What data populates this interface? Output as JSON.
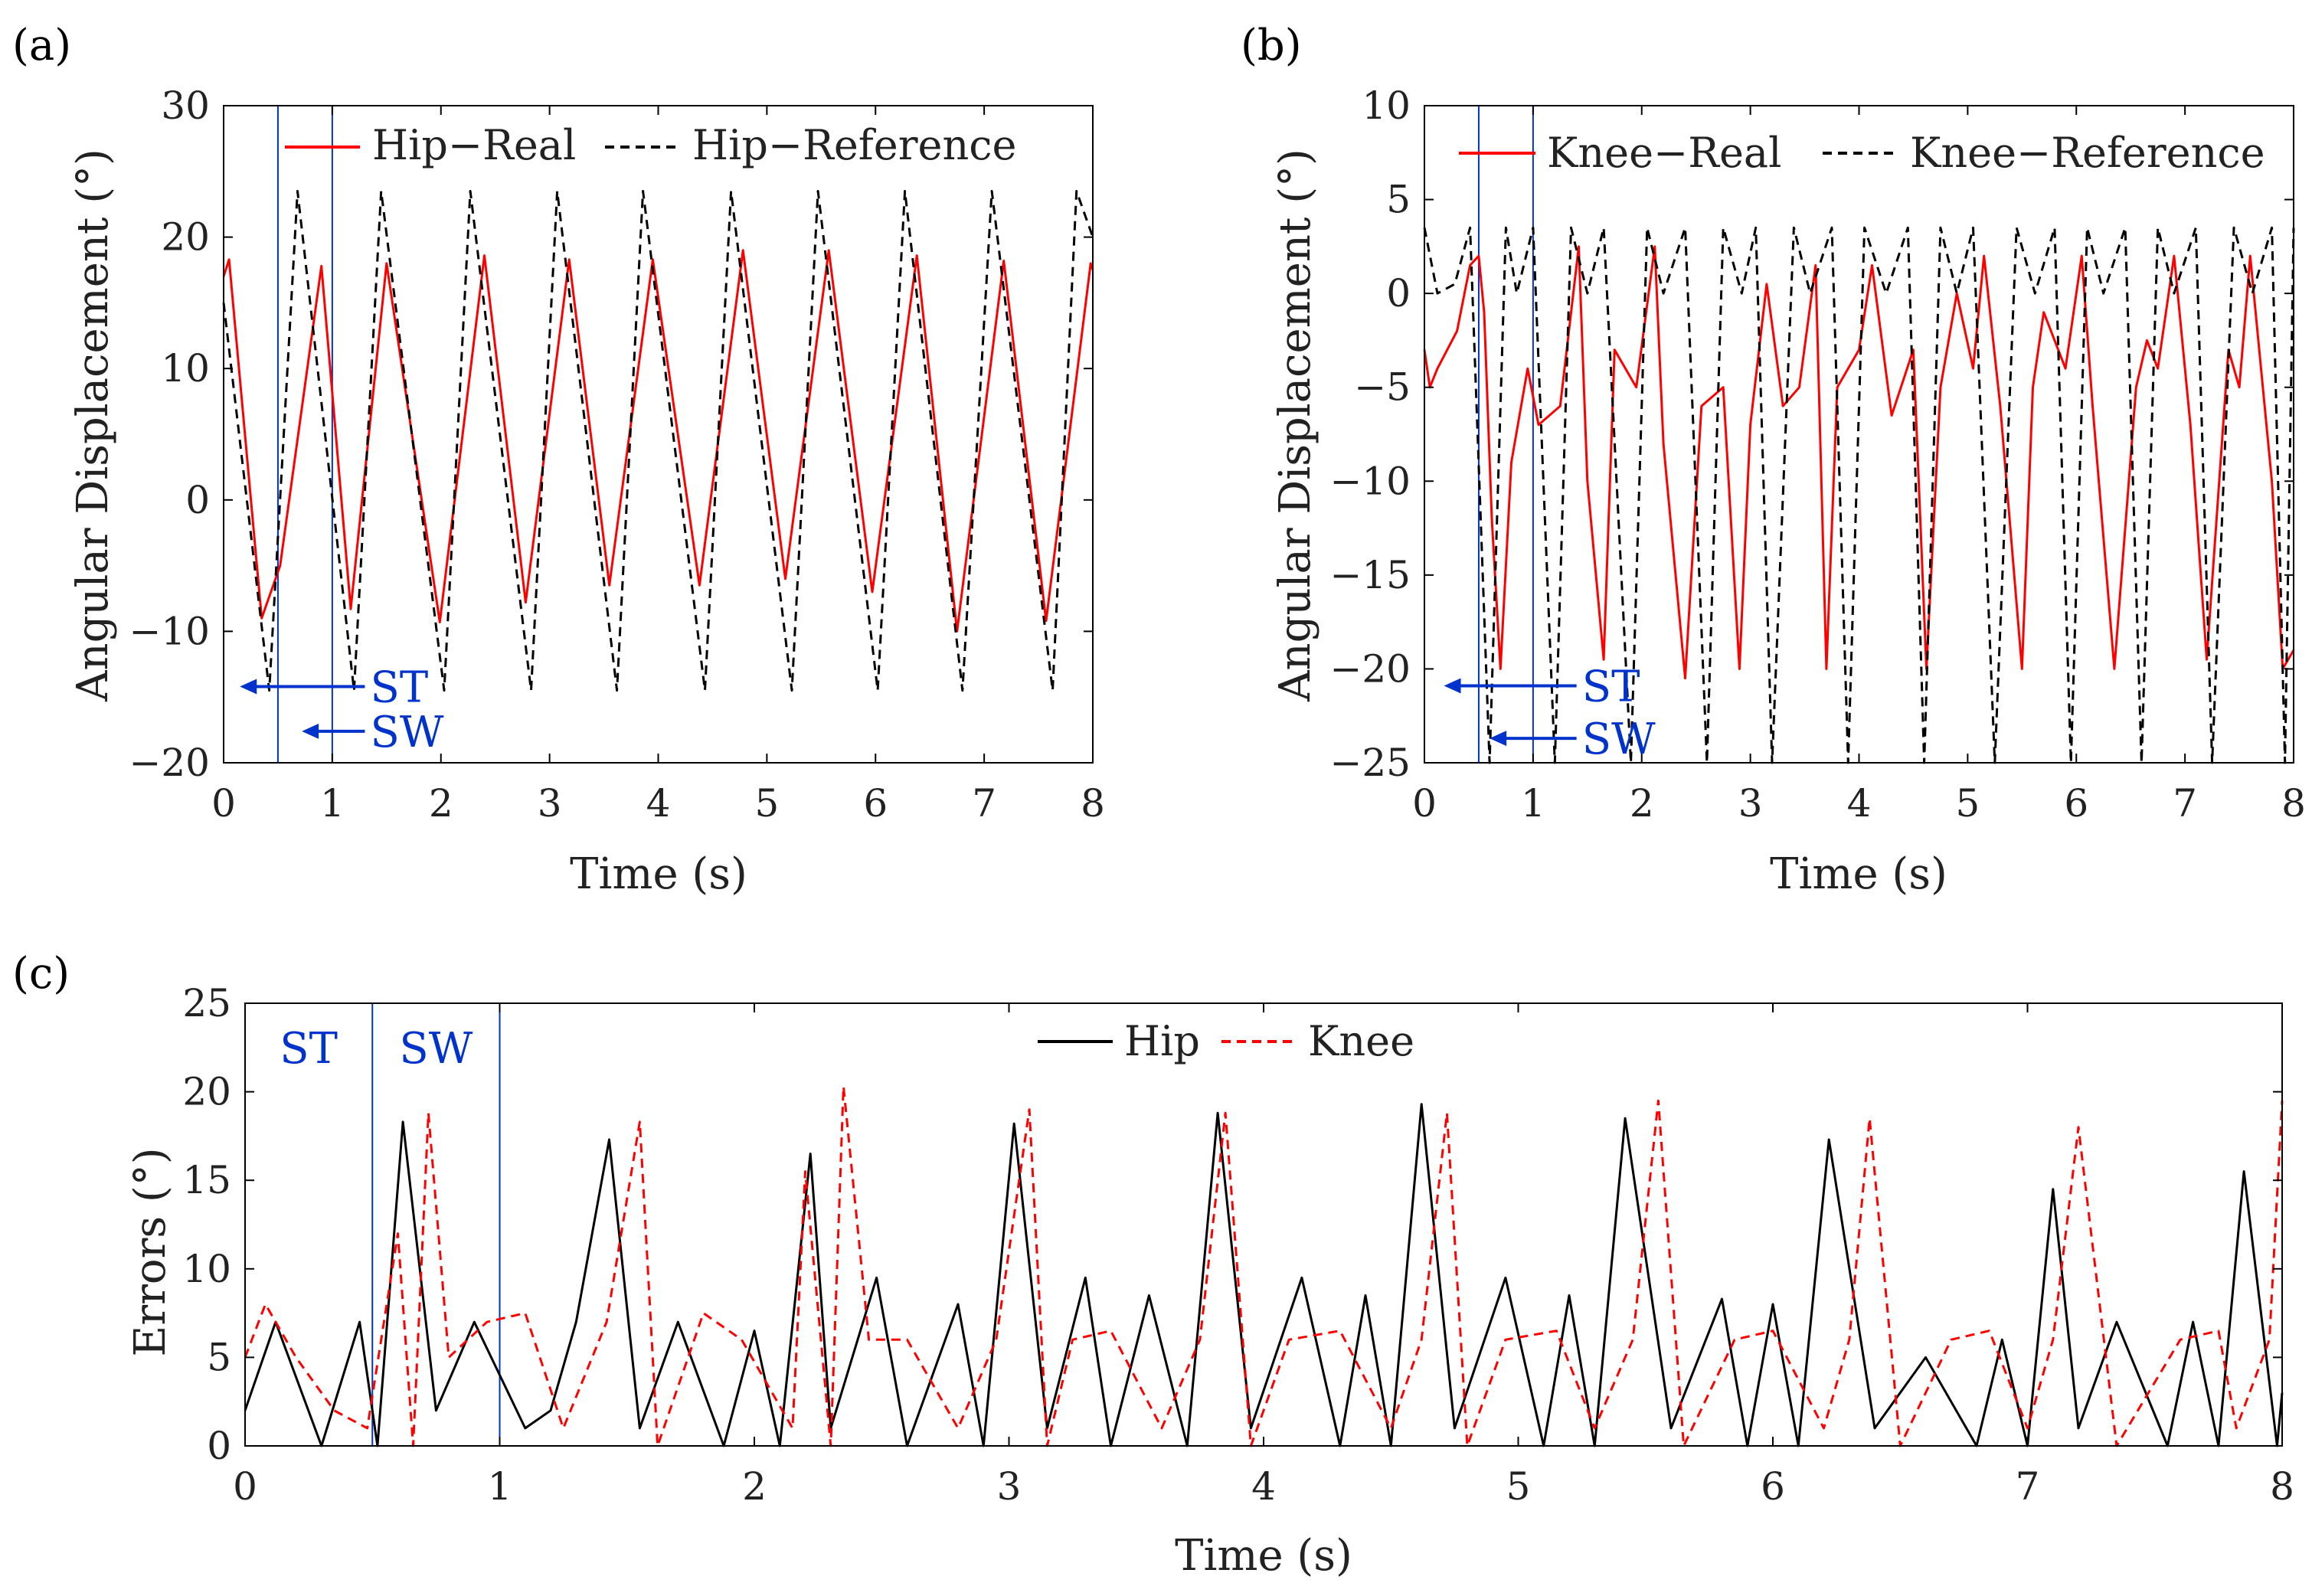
{
  "colors": {
    "real": "#ff0000",
    "reference": "#000000",
    "phase": "#0033cc",
    "axis": "#000000",
    "box": "#000000"
  },
  "chart_data": [
    {
      "id": "a",
      "panel_label": "(a)",
      "type": "line",
      "xlabel": "Time (s)",
      "ylabel": "Angular Displacement (°)",
      "xlim": [
        0,
        8
      ],
      "ylim": [
        -20,
        30
      ],
      "xticks": [
        0,
        1,
        2,
        3,
        4,
        5,
        6,
        7,
        8
      ],
      "yticks": [
        -20,
        -10,
        0,
        10,
        20,
        30
      ],
      "ytick_labels": [
        "−20",
        "−10",
        "0",
        "10",
        "20",
        "30"
      ],
      "legend": {
        "position": "top",
        "entries": [
          "Hip−Real",
          "Hip−Reference"
        ]
      },
      "phase_lines": [
        0.5,
        1.0
      ],
      "annotations": [
        {
          "text": "ST",
          "y": -14.2,
          "arrow_from": 1.3,
          "arrow_to": 0.15,
          "text_x": 1.35
        },
        {
          "text": "SW",
          "y": -17.6,
          "arrow_from": 1.3,
          "arrow_to": 0.72,
          "text_x": 1.35
        }
      ],
      "series": [
        {
          "name": "Hip−Real",
          "style": "solid",
          "color": "real",
          "x": [
            0,
            0.05,
            0.35,
            0.52,
            0.9,
            1.17,
            1.5,
            1.99,
            2.4,
            2.78,
            3.18,
            3.55,
            3.95,
            4.38,
            4.78,
            5.17,
            5.57,
            5.97,
            6.38,
            6.75,
            7.18,
            7.57,
            7.98,
            8.0
          ],
          "values": [
            17,
            18.3,
            -9,
            -5,
            17.8,
            -8.3,
            18,
            -9.3,
            18.6,
            -7.8,
            18.3,
            -6.5,
            18.3,
            -6.5,
            19,
            -6,
            19,
            -7,
            18.6,
            -10,
            18.2,
            -9.2,
            18,
            17.5
          ]
        },
        {
          "name": "Hip−Reference",
          "style": "dashed",
          "color": "reference",
          "x": [
            0,
            0.42,
            0.68,
            1.2,
            1.45,
            2.03,
            2.27,
            2.83,
            3.07,
            3.62,
            3.86,
            4.43,
            4.67,
            5.23,
            5.47,
            6.02,
            6.27,
            6.8,
            7.07,
            7.63,
            7.85,
            8.0
          ],
          "values": [
            15,
            -14.5,
            23.5,
            -14.5,
            23.5,
            -14.5,
            23.5,
            -14.5,
            23.5,
            -14.5,
            23.5,
            -14.5,
            23.5,
            -14.5,
            23.5,
            -14.5,
            23.5,
            -14.5,
            23.5,
            -14.5,
            23.5,
            20
          ]
        }
      ]
    },
    {
      "id": "b",
      "panel_label": "(b)",
      "type": "line",
      "xlabel": "Time (s)",
      "ylabel": "Angular Displacement (°)",
      "xlim": [
        0,
        8
      ],
      "ylim": [
        -25,
        10
      ],
      "xticks": [
        0,
        1,
        2,
        3,
        4,
        5,
        6,
        7,
        8
      ],
      "yticks": [
        -25,
        -20,
        -15,
        -10,
        -5,
        0,
        5,
        10
      ],
      "ytick_labels": [
        "−25",
        "−20",
        "−15",
        "−10",
        "−5",
        "0",
        "5",
        "10"
      ],
      "legend": {
        "position": "top",
        "entries": [
          "Knee−Real",
          "Knee−Reference"
        ]
      },
      "phase_lines": [
        0.5,
        1.0
      ],
      "annotations": [
        {
          "text": "ST",
          "y": -20.9,
          "arrow_from": 1.4,
          "arrow_to": 0.18,
          "text_x": 1.45
        },
        {
          "text": "SW",
          "y": -23.7,
          "arrow_from": 1.4,
          "arrow_to": 0.6,
          "text_x": 1.45
        }
      ],
      "series": [
        {
          "name": "Knee−Real",
          "style": "solid",
          "color": "real",
          "x": [
            0,
            0.05,
            0.12,
            0.3,
            0.42,
            0.5,
            0.55,
            0.62,
            0.7,
            0.8,
            0.95,
            1.05,
            1.25,
            1.42,
            1.5,
            1.65,
            1.75,
            1.95,
            2.12,
            2.2,
            2.4,
            2.55,
            2.75,
            2.9,
            3.0,
            3.15,
            3.3,
            3.45,
            3.6,
            3.7,
            3.8,
            4.0,
            4.12,
            4.3,
            4.5,
            4.62,
            4.75,
            4.9,
            5.05,
            5.15,
            5.3,
            5.5,
            5.6,
            5.7,
            5.9,
            6.05,
            6.15,
            6.35,
            6.55,
            6.65,
            6.75,
            6.9,
            7.05,
            7.2,
            7.4,
            7.5,
            7.6,
            7.8,
            7.9,
            8.0
          ],
          "values": [
            -3,
            -5,
            -4,
            -2,
            1.5,
            2,
            -1,
            -12,
            -20,
            -9,
            -4,
            -7,
            -6,
            2.5,
            -10,
            -19.5,
            -3,
            -5,
            2.5,
            -8,
            -20.5,
            -6,
            -5,
            -20,
            -7,
            0.5,
            -6,
            -5,
            1.5,
            -20,
            -5,
            -3,
            1.5,
            -6.5,
            -3,
            -20,
            -5,
            0,
            -4,
            2,
            -6,
            -20,
            -5,
            -1,
            -4,
            2,
            -6,
            -20,
            -5,
            -2.5,
            -4,
            2,
            -7,
            -19.5,
            -3,
            -5,
            2,
            -10,
            -20,
            -19
          ]
        },
        {
          "name": "Knee−Reference",
          "style": "dashed",
          "color": "reference",
          "x": [
            0,
            0.12,
            0.28,
            0.42,
            0.6,
            0.75,
            0.85,
            1.0,
            1.2,
            1.35,
            1.5,
            1.65,
            1.9,
            2.05,
            2.2,
            2.4,
            2.6,
            2.75,
            2.92,
            3.05,
            3.2,
            3.4,
            3.55,
            3.75,
            3.9,
            4.05,
            4.25,
            4.45,
            4.6,
            4.75,
            4.9,
            5.05,
            5.25,
            5.45,
            5.62,
            5.8,
            5.95,
            6.1,
            6.25,
            6.45,
            6.6,
            6.75,
            6.9,
            7.1,
            7.25,
            7.45,
            7.62,
            7.8,
            7.92,
            8.0
          ],
          "values": [
            3.5,
            0,
            0.5,
            3.5,
            -25,
            3.5,
            0,
            3.5,
            -25,
            3.5,
            0,
            3.5,
            -25,
            3.5,
            0,
            3.5,
            -25,
            3.5,
            0,
            3.5,
            -25,
            3.5,
            0,
            3.5,
            -25,
            3.5,
            0,
            3.5,
            -25,
            3.5,
            0,
            3.5,
            -25,
            3.5,
            0,
            3.5,
            -25,
            3.5,
            0,
            3.5,
            -25,
            3.5,
            0,
            3.5,
            -25,
            3.5,
            0,
            3.5,
            -25,
            3.5
          ]
        }
      ]
    },
    {
      "id": "c",
      "panel_label": "(c)",
      "type": "line",
      "xlabel": "Time (s)",
      "ylabel": "Errors (°)",
      "xlim": [
        0,
        8
      ],
      "ylim": [
        0,
        25
      ],
      "xticks": [
        0,
        1,
        2,
        3,
        4,
        5,
        6,
        7,
        8
      ],
      "yticks": [
        0,
        5,
        10,
        15,
        20,
        25
      ],
      "ytick_labels": [
        "0",
        "5",
        "10",
        "15",
        "20",
        "25"
      ],
      "legend": {
        "position": "top",
        "entries": [
          "Hip",
          "Knee"
        ]
      },
      "phase_lines": [
        0.5,
        1.0
      ],
      "phase_labels": [
        {
          "text": "ST",
          "x": 0.25
        },
        {
          "text": "SW",
          "x": 0.75
        }
      ],
      "series": [
        {
          "name": "Hip",
          "style": "solid",
          "color": "reference",
          "x": [
            0,
            0.12,
            0.3,
            0.45,
            0.52,
            0.62,
            0.75,
            0.9,
            1.1,
            1.2,
            1.3,
            1.43,
            1.55,
            1.7,
            1.88,
            2.0,
            2.1,
            2.22,
            2.3,
            2.48,
            2.6,
            2.8,
            2.9,
            3.02,
            3.15,
            3.3,
            3.4,
            3.55,
            3.7,
            3.82,
            3.95,
            4.15,
            4.3,
            4.4,
            4.5,
            4.62,
            4.75,
            4.95,
            5.1,
            5.2,
            5.3,
            5.42,
            5.6,
            5.8,
            5.9,
            6.0,
            6.1,
            6.22,
            6.4,
            6.6,
            6.8,
            6.9,
            7.0,
            7.1,
            7.2,
            7.35,
            7.55,
            7.65,
            7.75,
            7.85,
            7.98,
            8.0
          ],
          "values": [
            2,
            7,
            0,
            7,
            0,
            18.3,
            2,
            7,
            1,
            2,
            7,
            17.3,
            1,
            7,
            0,
            6.5,
            0,
            16.5,
            1,
            9.5,
            0,
            8,
            0,
            18.2,
            1,
            9.5,
            0,
            8.5,
            0,
            18.8,
            1,
            9.5,
            0,
            8.5,
            0,
            19.3,
            1,
            9.5,
            0,
            8.5,
            0,
            18.5,
            1,
            8.3,
            0,
            8,
            0,
            17.3,
            1,
            5,
            0,
            6,
            0,
            14.5,
            1,
            7,
            0,
            7,
            0,
            15.5,
            0,
            3
          ]
        },
        {
          "name": "Knee",
          "style": "dashed",
          "color": "real",
          "x": [
            0,
            0.08,
            0.2,
            0.35,
            0.48,
            0.6,
            0.66,
            0.72,
            0.8,
            0.95,
            1.1,
            1.25,
            1.42,
            1.55,
            1.62,
            1.8,
            1.95,
            2.15,
            2.2,
            2.3,
            2.35,
            2.45,
            2.6,
            2.8,
            2.95,
            3.08,
            3.15,
            3.25,
            3.4,
            3.6,
            3.75,
            3.85,
            3.95,
            4.1,
            4.3,
            4.5,
            4.62,
            4.72,
            4.8,
            4.95,
            5.15,
            5.3,
            5.45,
            5.55,
            5.65,
            5.85,
            6.0,
            6.2,
            6.3,
            6.38,
            6.5,
            6.7,
            6.85,
            7.0,
            7.1,
            7.2,
            7.35,
            7.6,
            7.75,
            7.82,
            7.95,
            8.0
          ],
          "values": [
            5,
            8,
            5,
            2,
            1,
            12,
            0,
            18.8,
            5,
            7,
            7.5,
            1,
            7,
            18.3,
            0,
            7.5,
            6,
            1,
            15.5,
            0,
            20.3,
            6,
            6,
            1,
            6,
            19,
            0,
            6,
            6.5,
            1,
            6,
            18.8,
            0,
            6,
            6.5,
            1,
            6,
            18.8,
            0,
            6,
            6.5,
            1,
            6,
            19.5,
            0,
            6,
            6.5,
            1,
            6,
            18.5,
            0,
            6,
            6.5,
            1,
            6,
            18,
            0,
            6,
            6.5,
            1,
            6,
            19.5
          ]
        }
      ]
    }
  ]
}
